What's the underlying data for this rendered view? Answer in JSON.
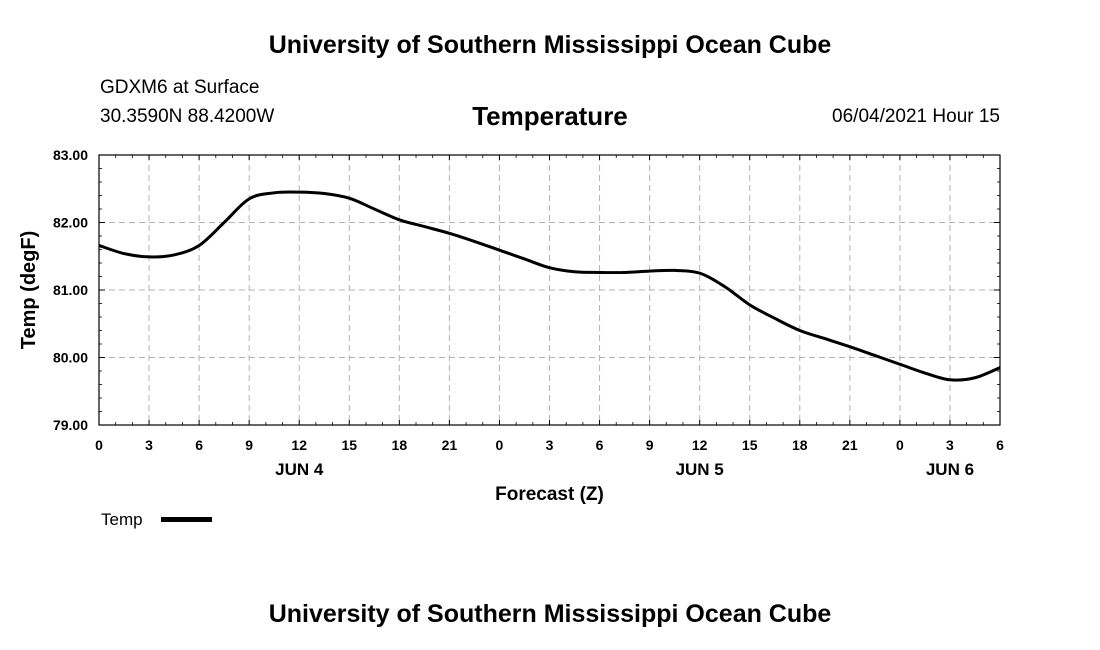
{
  "page": {
    "top_title": "University of Southern Mississippi Ocean Cube",
    "bottom_title": "University of Southern Mississippi Ocean Cube"
  },
  "station": {
    "name_line": "GDXM6 at Surface",
    "coords_line": "30.3590N  88.4200W"
  },
  "timestamp": "06/04/2021 Hour 15",
  "chart_data": {
    "type": "line",
    "title": "Temperature",
    "xlabel": "Forecast (Z)",
    "ylabel": "Temp (degF)",
    "ylim": [
      79.0,
      83.0
    ],
    "xlim": [
      0,
      54
    ],
    "grid": true,
    "yticks": [
      "79.00",
      "80.00",
      "81.00",
      "82.00",
      "83.00"
    ],
    "xticks": [
      {
        "pos": 0,
        "label": "0"
      },
      {
        "pos": 3,
        "label": "3"
      },
      {
        "pos": 6,
        "label": "6"
      },
      {
        "pos": 9,
        "label": "9"
      },
      {
        "pos": 12,
        "label": "12"
      },
      {
        "pos": 15,
        "label": "15"
      },
      {
        "pos": 18,
        "label": "18"
      },
      {
        "pos": 21,
        "label": "21"
      },
      {
        "pos": 24,
        "label": "0"
      },
      {
        "pos": 27,
        "label": "3"
      },
      {
        "pos": 30,
        "label": "6"
      },
      {
        "pos": 33,
        "label": "9"
      },
      {
        "pos": 36,
        "label": "12"
      },
      {
        "pos": 39,
        "label": "15"
      },
      {
        "pos": 42,
        "label": "18"
      },
      {
        "pos": 45,
        "label": "21"
      },
      {
        "pos": 48,
        "label": "0"
      },
      {
        "pos": 51,
        "label": "3"
      },
      {
        "pos": 54,
        "label": "6"
      }
    ],
    "day_labels": [
      {
        "pos": 12,
        "label": "JUN 4"
      },
      {
        "pos": 36,
        "label": "JUN 5"
      },
      {
        "pos": 51,
        "label": "JUN 6"
      }
    ],
    "legend": {
      "label": "Temp",
      "position": "bottom-left"
    },
    "series": [
      {
        "name": "Temp",
        "x": [
          0,
          1.5,
          3,
          4.5,
          6,
          7.5,
          9,
          10.5,
          12,
          13.5,
          15,
          16.5,
          18,
          19.5,
          21,
          22.5,
          24,
          25.5,
          27,
          28.5,
          30,
          31.5,
          33,
          34.5,
          36,
          37.5,
          39,
          40.5,
          42,
          43.5,
          45,
          46.5,
          48,
          49.5,
          51,
          52.5,
          54
        ],
        "values": [
          81.66,
          81.54,
          81.49,
          81.52,
          81.66,
          82.0,
          82.35,
          82.44,
          82.45,
          82.43,
          82.36,
          82.2,
          82.04,
          81.94,
          81.84,
          81.72,
          81.59,
          81.46,
          81.33,
          81.27,
          81.26,
          81.26,
          81.28,
          81.29,
          81.25,
          81.05,
          80.78,
          80.58,
          80.4,
          80.28,
          80.16,
          80.03,
          79.9,
          79.77,
          79.67,
          79.7,
          79.85
        ]
      }
    ]
  }
}
